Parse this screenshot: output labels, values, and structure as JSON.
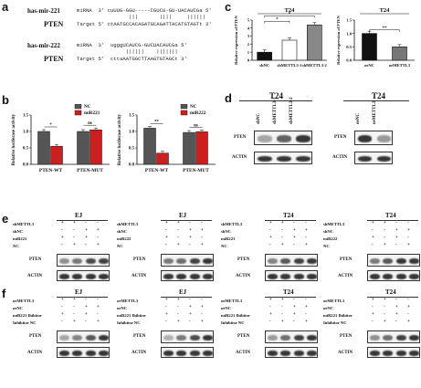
{
  "panels": {
    "a": {
      "letter": "a",
      "mir221_name": "has-mir-221",
      "mir221_mirna": "miRNA  3' cuUUG-GGU-----CGUCU-GU-UACAUCGa 5'",
      "mir221_bars": "                 |||       ||||     ||||||",
      "mir221_target_name": "PTEN",
      "mir221_target": "Target 5' ctAATGCCACAGATGCAGATTACATGTAGTt 3'",
      "mir222_name": "has-mir-222",
      "mir222_mirna": "miRNA  3'  ugggUCAUCG-GUCUACAUCGa 5'",
      "mir222_bars": "                ||||||    |||||||",
      "mir222_target_name": "PTEN",
      "mir222_target": "Target 5'  cttaAATGGCTTAAGTGTAGCt 3'"
    },
    "b": {
      "letter": "b",
      "ylabel": "Relative luciferase activity",
      "chart_left": {
        "legend": [
          "NC",
          "miR221"
        ],
        "ylim": [
          0,
          1.5
        ],
        "yticks": [
          "0.0",
          "0.5",
          "1.0",
          "1.5"
        ],
        "categories": [
          "PTEN-WT",
          "PTEN-MUT"
        ],
        "series": [
          {
            "name": "NC",
            "values": [
              1.0,
              1.0
            ],
            "color": "#555555"
          },
          {
            "name": "miR221",
            "values": [
              0.55,
              1.05
            ],
            "color": "#cc1f1f"
          }
        ],
        "sig": [
          "*",
          "ns"
        ]
      },
      "chart_right": {
        "legend": [
          "NC",
          "miR222"
        ],
        "ylim": [
          0,
          1.5
        ],
        "yticks": [
          "0.0",
          "0.5",
          "1.0",
          "1.5"
        ],
        "categories": [
          "PTEN-WT",
          "PTEN-MUT"
        ],
        "series": [
          {
            "name": "NC",
            "values": [
              1.1,
              0.97
            ],
            "color": "#555555"
          },
          {
            "name": "miR222",
            "values": [
              0.34,
              0.99
            ],
            "color": "#cc1f1f"
          }
        ],
        "sig": [
          "**",
          "ns"
        ]
      }
    },
    "c": {
      "letter": "c",
      "ylabel": "Relative expression of PTEN",
      "chart_left": {
        "title": "T24",
        "ylim": [
          0,
          5
        ],
        "yticks": [
          "0",
          "1",
          "2",
          "3",
          "4",
          "5"
        ],
        "categories": [
          "shNC",
          "shMETTL3-1",
          "shMETTL3-2"
        ],
        "values": [
          1.0,
          2.5,
          4.4
        ],
        "colors": [
          "#111111",
          "#ffffff",
          "#888888"
        ],
        "sig": [
          "*",
          "*"
        ]
      },
      "chart_right": {
        "title": "T24",
        "ylim": [
          0,
          1.5
        ],
        "yticks": [
          "0.0",
          "0.5",
          "1.0",
          "1.5"
        ],
        "categories": [
          "oeNC",
          "oeMETTL3"
        ],
        "values": [
          1.0,
          0.5
        ],
        "colors": [
          "#111111",
          "#777777"
        ],
        "sig": [
          "**"
        ]
      }
    },
    "d": {
      "letter": "d",
      "left": {
        "title": "T24",
        "lanes": [
          "shNC",
          "shMETTL3-1",
          "shMETTL3-2"
        ],
        "rows": [
          "PTEN",
          "ACTIN"
        ]
      },
      "right": {
        "title": "T24",
        "lanes": [
          "oeNC",
          "oeMETTL3"
        ],
        "rows": [
          "PTEN",
          "ACTIN"
        ]
      }
    },
    "e": {
      "letter": "e",
      "blocks": [
        {
          "title": "EJ",
          "rows": [
            {
              "label": "shMETTL3",
              "marks": [
                "+",
                "+",
                "-",
                "-"
              ]
            },
            {
              "label": "shNC",
              "marks": [
                "-",
                "-",
                "+",
                "+"
              ]
            },
            {
              "label": "miR221",
              "marks": [
                "+",
                "-",
                "+",
                "-"
              ]
            },
            {
              "label": "NC",
              "marks": [
                "-",
                "+",
                "-",
                "+"
              ]
            }
          ],
          "pten": "PTEN",
          "actin": "ACTIN"
        },
        {
          "title": "EJ",
          "rows": [
            {
              "label": "shMETTL3",
              "marks": [
                "+",
                "+",
                "-",
                "-"
              ]
            },
            {
              "label": "shNC",
              "marks": [
                "-",
                "-",
                "+",
                "+"
              ]
            },
            {
              "label": "miR222",
              "marks": [
                "+",
                "-",
                "+",
                "-"
              ]
            },
            {
              "label": "NC",
              "marks": [
                "-",
                "+",
                "-",
                "+"
              ]
            }
          ],
          "pten": "PTEN",
          "actin": "ACTIN"
        },
        {
          "title": "T24",
          "rows": [
            {
              "label": "shMETTL3",
              "marks": [
                "+",
                "+",
                "-",
                "-"
              ]
            },
            {
              "label": "shNC",
              "marks": [
                "-",
                "-",
                "+",
                "+"
              ]
            },
            {
              "label": "miR221",
              "marks": [
                "+",
                "-",
                "+",
                "-"
              ]
            },
            {
              "label": "NC",
              "marks": [
                "-",
                "+",
                "-",
                "+"
              ]
            }
          ],
          "pten": "PTEN",
          "actin": "ACTIN"
        },
        {
          "title": "T24",
          "rows": [
            {
              "label": "shMETTL3",
              "marks": [
                "+",
                "+",
                "-",
                "-"
              ]
            },
            {
              "label": "shNC",
              "marks": [
                "-",
                "-",
                "+",
                "+"
              ]
            },
            {
              "label": "miR222",
              "marks": [
                "+",
                "-",
                "+",
                "-"
              ]
            },
            {
              "label": "NC",
              "marks": [
                "-",
                "+",
                "-",
                "+"
              ]
            }
          ],
          "pten": "PTEN",
          "actin": "ACTIN"
        }
      ]
    },
    "f": {
      "letter": "f",
      "blocks": [
        {
          "title": "EJ",
          "rows": [
            {
              "label": "oeMETTL3",
              "marks": [
                "+",
                "+",
                "-",
                "-"
              ]
            },
            {
              "label": "oeNC",
              "marks": [
                "-",
                "-",
                "+",
                "+"
              ]
            },
            {
              "label": "miR221 Ihibitor",
              "marks": [
                "+",
                "-",
                "+",
                "-"
              ]
            },
            {
              "label": "Inhibitor NC",
              "marks": [
                "-",
                "+",
                "-",
                "+"
              ]
            }
          ],
          "pten": "PTEN",
          "actin": "ACTIN"
        },
        {
          "title": "EJ",
          "rows": [
            {
              "label": "oeMETTL3",
              "marks": [
                "+",
                "+",
                "-",
                "-"
              ]
            },
            {
              "label": "oeNC",
              "marks": [
                "-",
                "-",
                "+",
                "+"
              ]
            },
            {
              "label": "miR221 Ihibitor",
              "marks": [
                "+",
                "-",
                "+",
                "-"
              ]
            },
            {
              "label": "Inhibitor NC",
              "marks": [
                "-",
                "+",
                "-",
                "+"
              ]
            }
          ],
          "pten": "PTEN",
          "actin": "ACTIN"
        },
        {
          "title": "T24",
          "rows": [
            {
              "label": "oeMETTL3",
              "marks": [
                "+",
                "+",
                "-",
                "-"
              ]
            },
            {
              "label": "oeNC",
              "marks": [
                "-",
                "-",
                "+",
                "+"
              ]
            },
            {
              "label": "miR221 Ihibitor",
              "marks": [
                "+",
                "-",
                "+",
                "-"
              ]
            },
            {
              "label": "Inhibitor NC",
              "marks": [
                "-",
                "+",
                "-",
                "+"
              ]
            }
          ],
          "pten": "PTEN",
          "actin": "ACTIN"
        },
        {
          "title": "T24",
          "rows": [
            {
              "label": "oeMETTL3",
              "marks": [
                "+",
                "+",
                "-",
                "-"
              ]
            },
            {
              "label": "oeNC",
              "marks": [
                "-",
                "-",
                "+",
                "+"
              ]
            },
            {
              "label": "miR221 Ihibitor",
              "marks": [
                "+",
                "-",
                "+",
                "-"
              ]
            },
            {
              "label": "Inhibitor NC",
              "marks": [
                "-",
                "+",
                "-",
                "+"
              ]
            }
          ],
          "pten": "PTEN",
          "actin": "ACTIN"
        }
      ]
    }
  },
  "chart_data": [
    {
      "type": "bar",
      "title": "",
      "ylabel": "Relative luciferase activity",
      "categories": [
        "PTEN-WT",
        "PTEN-MUT"
      ],
      "series": [
        {
          "name": "NC",
          "values": [
            1.0,
            1.0
          ]
        },
        {
          "name": "miR221",
          "values": [
            0.55,
            1.05
          ]
        }
      ],
      "ylim": [
        0,
        1.5
      ],
      "legend": "top-right"
    },
    {
      "type": "bar",
      "title": "",
      "ylabel": "Relative luciferase activity",
      "categories": [
        "PTEN-WT",
        "PTEN-MUT"
      ],
      "series": [
        {
          "name": "NC",
          "values": [
            1.1,
            0.97
          ]
        },
        {
          "name": "miR222",
          "values": [
            0.34,
            0.99
          ]
        }
      ],
      "ylim": [
        0,
        1.5
      ],
      "legend": "top-right"
    },
    {
      "type": "bar",
      "title": "T24",
      "ylabel": "Relative expression of PTEN",
      "categories": [
        "shNC",
        "shMETTL3-1",
        "shMETTL3-2"
      ],
      "values": [
        1.0,
        2.5,
        4.4
      ],
      "ylim": [
        0,
        5
      ]
    },
    {
      "type": "bar",
      "title": "T24",
      "ylabel": "Relative expression of PTEN",
      "categories": [
        "oeNC",
        "oeMETTL3"
      ],
      "values": [
        1.0,
        0.5
      ],
      "ylim": [
        0,
        1.5
      ]
    }
  ]
}
